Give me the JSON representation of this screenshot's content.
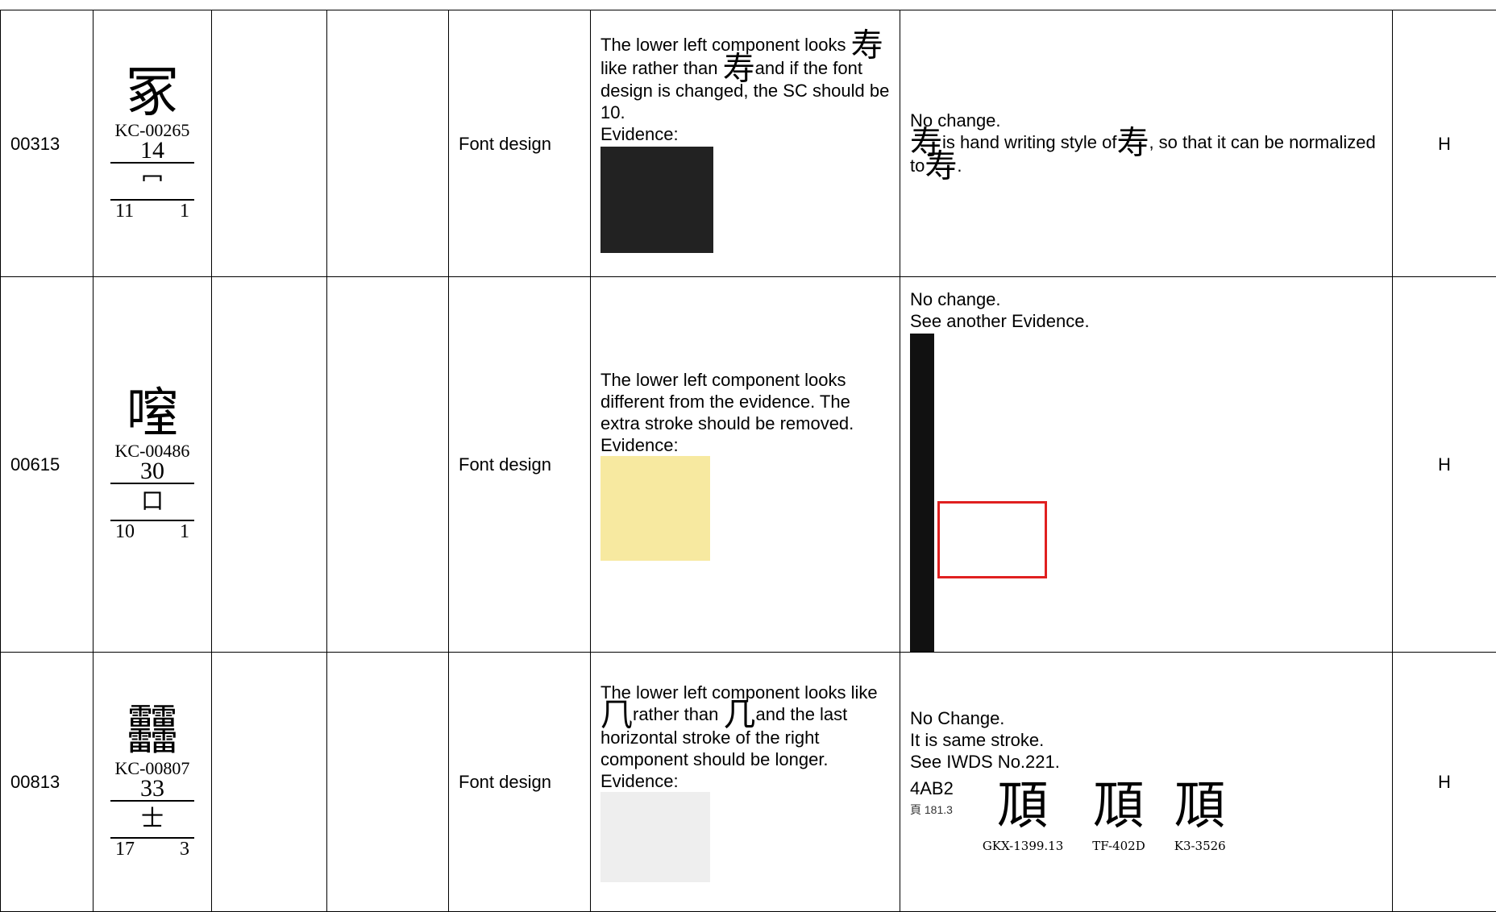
{
  "table": {
    "rows": [
      {
        "sn": "00313",
        "glyph": {
          "char": "冢",
          "code": "KC-00265",
          "strokes": "14",
          "radical": "冖",
          "rs_left": "11",
          "rs_right": "1"
        },
        "type": "Font design",
        "description": [
          "The lower left component looks",
          "寿",
          "like rather than",
          "寿",
          "and if the font design is changed, the SC should be 10.",
          "Evidence:"
        ],
        "response": [
          "No change.",
          "寿",
          "is hand writing style of",
          "寿",
          ", so that   it can be normalized to",
          "寿",
          "."
        ],
        "status": "H"
      },
      {
        "sn": "00615",
        "glyph": {
          "char": "㗧",
          "code": "KC-00486",
          "strokes": "30",
          "radical": "口",
          "rs_left": "10",
          "rs_right": "1"
        },
        "type": "Font design",
        "description": [
          "The lower left component looks different from the evidence. The extra stroke should be removed.",
          "Evidence:"
        ],
        "response": [
          "No change.",
          "See another Evidence."
        ],
        "status": "H"
      },
      {
        "sn": "00813",
        "glyph": {
          "char": "䨻",
          "code": "KC-00807",
          "strokes": "33",
          "radical": "士",
          "rs_left": "17",
          "rs_right": "3"
        },
        "type": "Font design",
        "description": [
          "The lower left component looks like",
          "⺇",
          "rather than",
          "几",
          "and the last horizontal stroke of the right component should be longer.",
          "Evidence:"
        ],
        "response": [
          "No Change.",
          "It is same stroke.",
          "See IWDS No.221."
        ],
        "iwds": {
          "code": "4AB2",
          "ref": "頁 181.3",
          "glyphs": [
            {
              "char": "䪲",
              "source": "GKX-1399.13"
            },
            {
              "char": "䪲",
              "source": "TF-402D"
            },
            {
              "char": "䪲",
              "source": "K3-3526"
            }
          ]
        },
        "status": "H"
      }
    ]
  }
}
